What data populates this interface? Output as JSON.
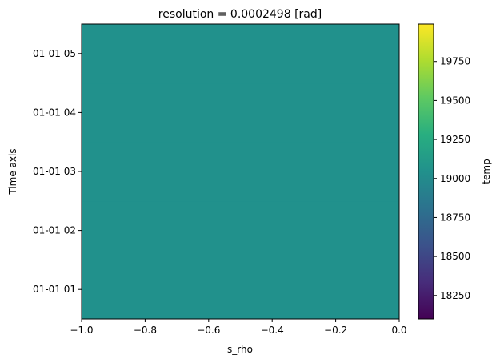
{
  "chart_data": {
    "type": "heatmap",
    "title": "resolution = 0.0002498 [rad]",
    "xlabel": "s_rho",
    "ylabel": "Time axis",
    "xlim": [
      -1.0,
      0.0
    ],
    "xticks": [
      -1.0,
      -0.8,
      -0.6,
      -0.4,
      -0.2,
      0.0
    ],
    "xtick_labels": [
      "−1.0",
      "−0.8",
      "−0.6",
      "−0.4",
      "−0.2",
      "0.0"
    ],
    "ylim_hours": [
      0.5,
      5.5
    ],
    "yticks_hours": [
      1,
      2,
      3,
      4,
      5
    ],
    "ytick_labels": [
      "01-01 01",
      "01-01 02",
      "01-01 03",
      "01-01 04",
      "01-01 05"
    ],
    "values": [
      [
        19045
      ],
      [
        19045
      ],
      [
        19045
      ],
      [
        19045
      ],
      [
        19045
      ]
    ],
    "colormap": "viridis",
    "colorbar": {
      "label": "temp",
      "range": [
        18100,
        19990
      ],
      "ticks": [
        18250,
        18500,
        18750,
        19000,
        19250,
        19500,
        19750
      ],
      "tick_labels": [
        "18250",
        "18500",
        "18750",
        "19000",
        "19250",
        "19500",
        "19750"
      ]
    },
    "grid": false,
    "fill_color": "#21908d"
  }
}
